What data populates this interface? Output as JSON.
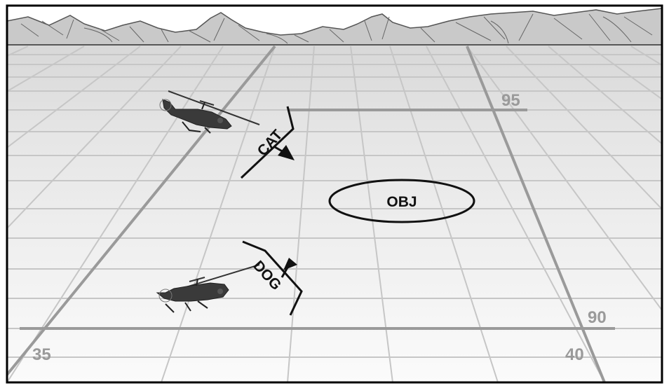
{
  "grid_labels": {
    "northing_top": "95",
    "northing_bottom": "90",
    "easting_left": "35",
    "easting_right": "40"
  },
  "units": {
    "upper": {
      "label": "CAT",
      "icon": "attack-helicopter-icon"
    },
    "lower": {
      "label": "DOG",
      "icon": "attack-helicopter-icon"
    }
  },
  "objective": {
    "label": "OBJ"
  },
  "colors": {
    "frame": "#000000",
    "grid_minor": "#c4c4c4",
    "grid_major": "#9c9c9c",
    "mountain_fill": "#c8c8c8",
    "symbol": "#111111"
  }
}
